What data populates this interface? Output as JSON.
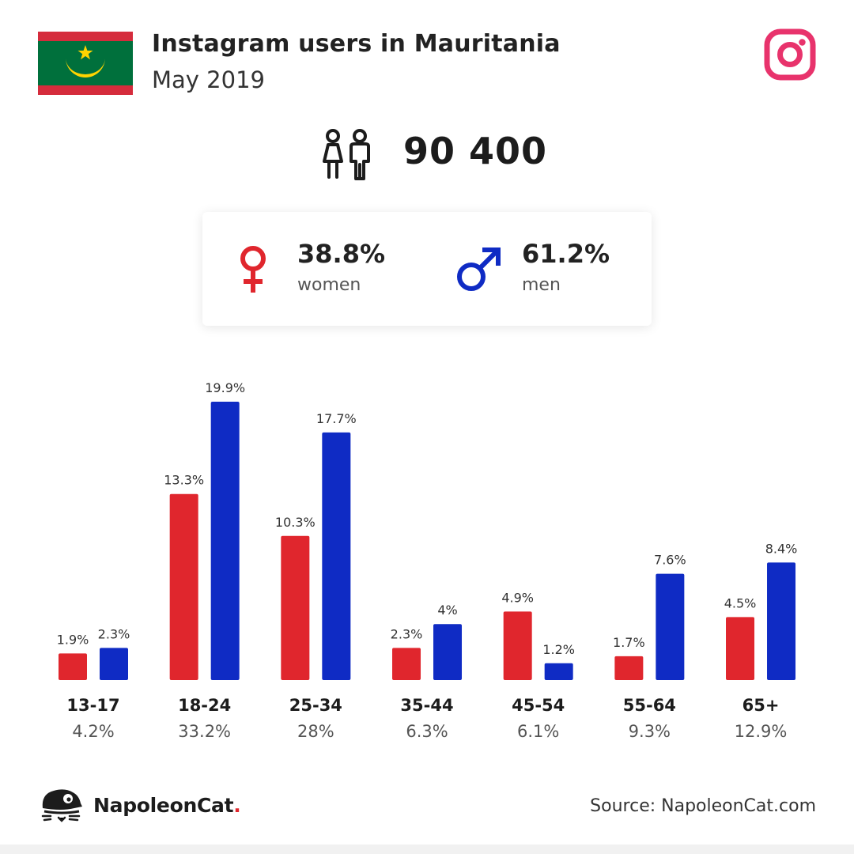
{
  "header": {
    "title": "Instagram users in Mauritania",
    "subtitle": "May 2019",
    "flag_icon": "mauritania-flag-icon",
    "brand_icon": "instagram-icon"
  },
  "total": {
    "icon": "people-icon",
    "value": "90 400"
  },
  "gender": {
    "women": {
      "value": "38.8%",
      "label": "women",
      "icon": "female-symbol-icon"
    },
    "men": {
      "value": "61.2%",
      "label": "men",
      "icon": "male-symbol-icon"
    }
  },
  "colors": {
    "women": "#e0262d",
    "men": "#0f2bc4",
    "instagram": "#e8336c",
    "flag_green": "#00703c",
    "flag_red": "#d52c3c",
    "flag_gold": "#ffd400"
  },
  "chart_data": {
    "type": "bar",
    "categories": [
      "13-17",
      "18-24",
      "25-34",
      "35-44",
      "45-54",
      "55-64",
      "65+"
    ],
    "group_totals": [
      "4.2%",
      "33.2%",
      "28%",
      "6.3%",
      "6.1%",
      "9.3%",
      "12.9%"
    ],
    "series": [
      {
        "name": "women",
        "values": [
          1.9,
          13.3,
          10.3,
          2.3,
          4.9,
          1.7,
          4.5
        ],
        "labels": [
          "1.9%",
          "13.3%",
          "10.3%",
          "2.3%",
          "4.9%",
          "1.7%",
          "4.5%"
        ]
      },
      {
        "name": "men",
        "values": [
          2.3,
          19.9,
          17.7,
          4,
          1.2,
          7.6,
          8.4
        ],
        "labels": [
          "2.3%",
          "19.9%",
          "17.7%",
          "4%",
          "1.2%",
          "7.6%",
          "8.4%"
        ]
      }
    ],
    "ylim": [
      0,
      19.9
    ],
    "grid": false,
    "legend": "none"
  },
  "footer": {
    "brand_name": "NapoleonCat",
    "brand_dot": ".",
    "brand_icon": "napoleoncat-logo-icon",
    "source": "Source: NapoleonCat.com"
  }
}
